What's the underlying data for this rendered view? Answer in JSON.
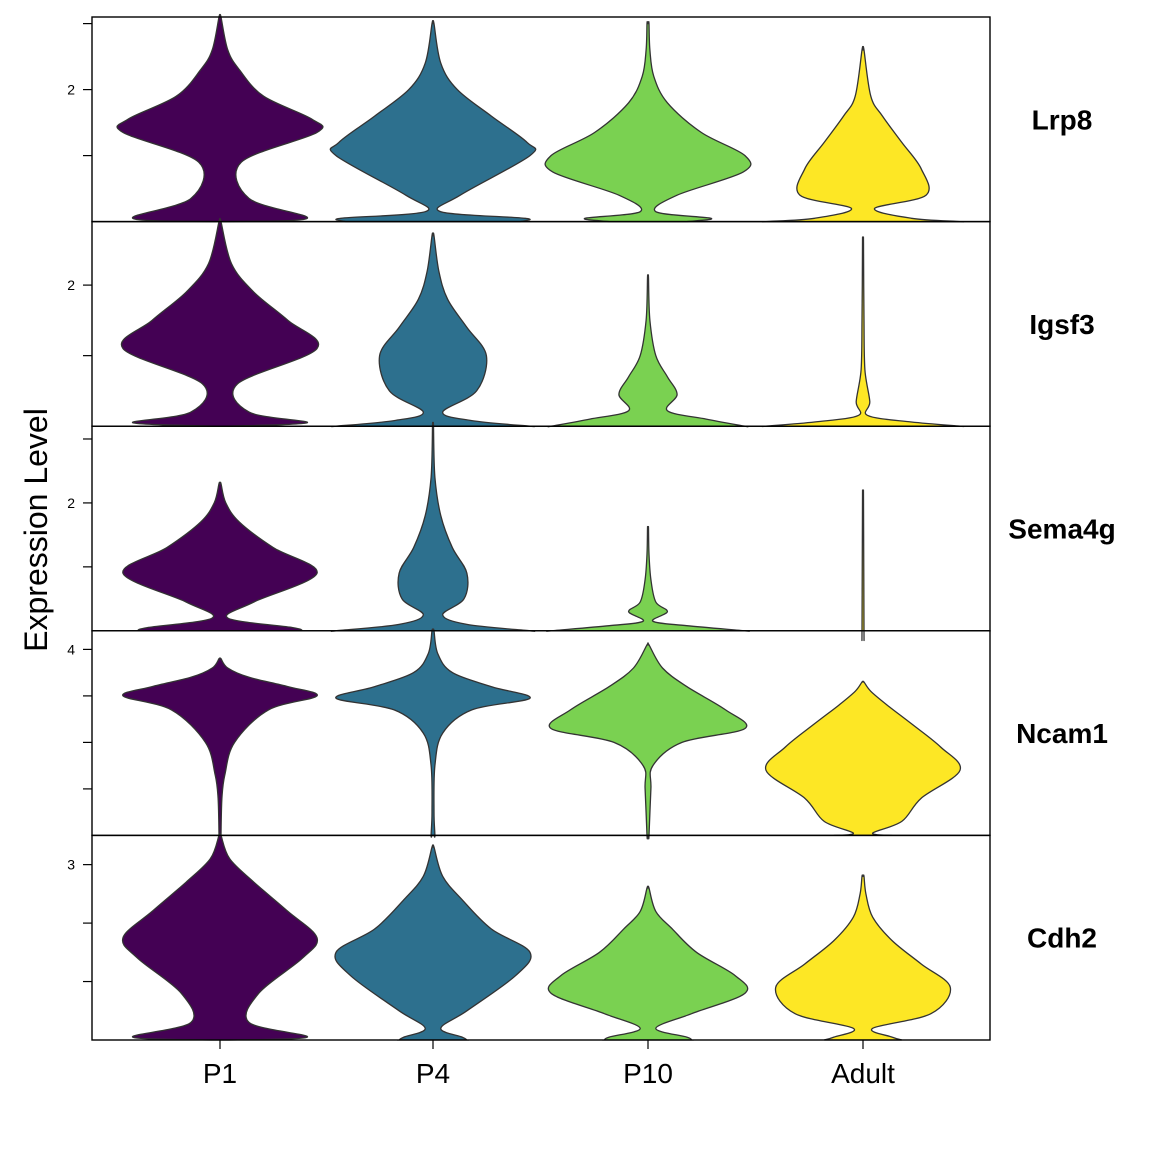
{
  "chart_data": {
    "type": "violin",
    "ylabel": "Expression Level",
    "xlabel": "",
    "categories": [
      "P1",
      "P4",
      "P10",
      "Adult"
    ],
    "colors": [
      "#440154",
      "#2d708e",
      "#7ad151",
      "#fde725"
    ],
    "panels": [
      {
        "gene": "Lrp8",
        "ylim": [
          0,
          3.1
        ],
        "labeled_ticks": [
          2
        ],
        "minor_ticks": [
          1,
          3
        ],
        "violins": [
          {
            "category": "P1",
            "max": 3.1,
            "zero_width": 0.06,
            "shape": [
              [
                0.05,
                0.9
              ],
              [
                0.35,
                0.3
              ],
              [
                0.9,
                0.22
              ],
              [
                1.35,
                1.0
              ],
              [
                1.55,
                0.95
              ],
              [
                1.9,
                0.45
              ],
              [
                2.3,
                0.2
              ],
              [
                2.6,
                0.08
              ],
              [
                3.1,
                0.01
              ]
            ]
          },
          {
            "category": "P4",
            "max": 3.0,
            "zero_width": 0.9,
            "shape": [
              [
                0.05,
                0.95
              ],
              [
                0.15,
                0.08
              ],
              [
                0.4,
                0.28
              ],
              [
                1.0,
                1.0
              ],
              [
                1.2,
                0.97
              ],
              [
                1.6,
                0.6
              ],
              [
                2.0,
                0.25
              ],
              [
                2.4,
                0.08
              ],
              [
                3.0,
                0.01
              ]
            ]
          },
          {
            "category": "P10",
            "max": 3.0,
            "zero_width": 0.4,
            "shape": [
              [
                0.05,
                0.65
              ],
              [
                0.15,
                0.08
              ],
              [
                0.4,
                0.3
              ],
              [
                0.75,
                0.98
              ],
              [
                1.0,
                1.0
              ],
              [
                1.35,
                0.55
              ],
              [
                1.8,
                0.2
              ],
              [
                2.2,
                0.06
              ],
              [
                2.6,
                0.02
              ],
              [
                3.0,
                0.01
              ]
            ]
          },
          {
            "category": "Adult",
            "max": 2.6,
            "zero_width": 1.0,
            "shape": [
              [
                0.0,
                1.0
              ],
              [
                0.05,
                0.5
              ],
              [
                0.2,
                0.12
              ],
              [
                0.4,
                0.65
              ],
              [
                0.8,
                0.6
              ],
              [
                1.2,
                0.4
              ],
              [
                1.6,
                0.2
              ],
              [
                1.9,
                0.08
              ],
              [
                2.6,
                0.01
              ]
            ]
          }
        ]
      },
      {
        "gene": "Igsf3",
        "ylim": [
          0,
          2.9
        ],
        "labeled_ticks": [
          2
        ],
        "minor_ticks": [
          1
        ],
        "violins": [
          {
            "category": "P1",
            "max": 2.9,
            "zero_width": 0.06,
            "shape": [
              [
                0.05,
                0.9
              ],
              [
                0.2,
                0.3
              ],
              [
                0.6,
                0.18
              ],
              [
                1.1,
                1.0
              ],
              [
                1.5,
                0.7
              ],
              [
                1.9,
                0.35
              ],
              [
                2.3,
                0.12
              ],
              [
                2.9,
                0.01
              ]
            ]
          },
          {
            "category": "P4",
            "max": 2.7,
            "zero_width": 1.0,
            "shape": [
              [
                0.0,
                1.0
              ],
              [
                0.08,
                0.4
              ],
              [
                0.2,
                0.1
              ],
              [
                0.5,
                0.45
              ],
              [
                1.0,
                0.55
              ],
              [
                1.4,
                0.35
              ],
              [
                1.8,
                0.15
              ],
              [
                2.2,
                0.06
              ],
              [
                2.7,
                0.01
              ]
            ]
          },
          {
            "category": "P10",
            "max": 2.1,
            "zero_width": 1.0,
            "shape": [
              [
                0.0,
                1.0
              ],
              [
                0.1,
                0.6
              ],
              [
                0.22,
                0.2
              ],
              [
                0.45,
                0.3
              ],
              [
                0.7,
                0.2
              ],
              [
                1.0,
                0.08
              ],
              [
                1.5,
                0.02
              ],
              [
                2.1,
                0.005
              ]
            ]
          },
          {
            "category": "Adult",
            "max": 2.6,
            "zero_width": 1.0,
            "shape": [
              [
                0.0,
                1.0
              ],
              [
                0.06,
                0.5
              ],
              [
                0.15,
                0.05
              ],
              [
                0.35,
                0.07
              ],
              [
                0.8,
                0.02
              ],
              [
                1.5,
                0.01
              ],
              [
                2.6,
                0.005
              ]
            ]
          }
        ]
      },
      {
        "gene": "Sema4g",
        "ylim": [
          0,
          3.2
        ],
        "labeled_ticks": [
          2
        ],
        "minor_ticks": [
          1,
          3
        ],
        "violins": [
          {
            "category": "P1",
            "max": 2.3,
            "zero_width": 0.85,
            "shape": [
              [
                0.05,
                0.75
              ],
              [
                0.2,
                0.08
              ],
              [
                0.45,
                0.35
              ],
              [
                0.9,
                1.0
              ],
              [
                1.3,
                0.55
              ],
              [
                1.7,
                0.2
              ],
              [
                2.0,
                0.06
              ],
              [
                2.3,
                0.01
              ]
            ]
          },
          {
            "category": "P4",
            "max": 3.2,
            "zero_width": 1.0,
            "shape": [
              [
                0.0,
                1.0
              ],
              [
                0.1,
                0.35
              ],
              [
                0.25,
                0.1
              ],
              [
                0.5,
                0.32
              ],
              [
                0.9,
                0.35
              ],
              [
                1.3,
                0.2
              ],
              [
                1.8,
                0.08
              ],
              [
                2.4,
                0.02
              ],
              [
                3.2,
                0.005
              ]
            ]
          },
          {
            "category": "P10",
            "max": 1.6,
            "zero_width": 1.0,
            "shape": [
              [
                0.0,
                1.0
              ],
              [
                0.08,
                0.4
              ],
              [
                0.15,
                0.05
              ],
              [
                0.3,
                0.2
              ],
              [
                0.45,
                0.08
              ],
              [
                0.8,
                0.03
              ],
              [
                1.2,
                0.01
              ],
              [
                1.6,
                0.005
              ]
            ]
          },
          {
            "category": "Adult",
            "max": 2.05,
            "zero_width": 0.01,
            "shape": [
              [
                0.0,
                0.01
              ],
              [
                2.05,
                0.005
              ]
            ]
          }
        ]
      },
      {
        "gene": "Ncam1",
        "ylim": [
          0,
          4.4
        ],
        "labeled_ticks": [
          4
        ],
        "minor_ticks": [
          1,
          2,
          3
        ],
        "violins": [
          {
            "category": "P1",
            "max": 3.8,
            "zero_width": 0.01,
            "shape": [
              [
                0.0,
                0.01
              ],
              [
                0.8,
                0.02
              ],
              [
                1.3,
                0.05
              ],
              [
                2.0,
                0.15
              ],
              [
                2.7,
                0.5
              ],
              [
                3.0,
                1.0
              ],
              [
                3.2,
                0.7
              ],
              [
                3.4,
                0.3
              ],
              [
                3.6,
                0.08
              ],
              [
                3.8,
                0.01
              ]
            ]
          },
          {
            "category": "P4",
            "max": 4.4,
            "zero_width": 0.01,
            "shape": [
              [
                0.0,
                0.02
              ],
              [
                0.5,
                0.01
              ],
              [
                1.5,
                0.02
              ],
              [
                2.2,
                0.1
              ],
              [
                2.7,
                0.4
              ],
              [
                2.95,
                1.0
              ],
              [
                3.2,
                0.6
              ],
              [
                3.5,
                0.2
              ],
              [
                3.9,
                0.05
              ],
              [
                4.4,
                0.01
              ]
            ]
          },
          {
            "category": "P10",
            "max": 4.1,
            "zero_width": 0.005,
            "shape": [
              [
                0.0,
                0.01
              ],
              [
                1.0,
                0.03
              ],
              [
                1.5,
                0.05
              ],
              [
                2.0,
                0.35
              ],
              [
                2.3,
                1.0
              ],
              [
                2.7,
                0.8
              ],
              [
                3.2,
                0.4
              ],
              [
                3.6,
                0.15
              ],
              [
                4.1,
                0.01
              ]
            ]
          },
          {
            "category": "Adult",
            "max": 3.3,
            "zero_width": 0.3,
            "shape": [
              [
                0.05,
                0.1
              ],
              [
                0.3,
                0.4
              ],
              [
                0.8,
                0.6
              ],
              [
                1.4,
                1.0
              ],
              [
                1.9,
                0.8
              ],
              [
                2.4,
                0.5
              ],
              [
                2.8,
                0.25
              ],
              [
                3.1,
                0.08
              ],
              [
                3.3,
                0.01
              ]
            ]
          }
        ]
      },
      {
        "gene": "Cdh2",
        "ylim": [
          0,
          3.5
        ],
        "labeled_ticks": [
          3
        ],
        "minor_ticks": [
          1,
          2
        ],
        "violins": [
          {
            "category": "P1",
            "max": 3.5,
            "zero_width": 0.06,
            "shape": [
              [
                0.05,
                0.9
              ],
              [
                0.3,
                0.3
              ],
              [
                0.8,
                0.4
              ],
              [
                1.4,
                0.85
              ],
              [
                1.75,
                1.0
              ],
              [
                2.2,
                0.7
              ],
              [
                2.7,
                0.35
              ],
              [
                3.1,
                0.1
              ],
              [
                3.5,
                0.01
              ]
            ]
          },
          {
            "category": "P4",
            "max": 3.3,
            "zero_width": 0.35,
            "shape": [
              [
                0.05,
                0.3
              ],
              [
                0.2,
                0.08
              ],
              [
                0.5,
                0.35
              ],
              [
                1.1,
                0.85
              ],
              [
                1.5,
                1.0
              ],
              [
                1.9,
                0.6
              ],
              [
                2.4,
                0.3
              ],
              [
                2.8,
                0.1
              ],
              [
                3.3,
                0.01
              ]
            ]
          },
          {
            "category": "P10",
            "max": 2.6,
            "zero_width": 0.45,
            "shape": [
              [
                0.05,
                0.4
              ],
              [
                0.2,
                0.08
              ],
              [
                0.45,
                0.45
              ],
              [
                0.8,
                1.0
              ],
              [
                1.1,
                0.9
              ],
              [
                1.5,
                0.5
              ],
              [
                1.9,
                0.25
              ],
              [
                2.2,
                0.08
              ],
              [
                2.6,
                0.01
              ]
            ]
          },
          {
            "category": "Adult",
            "max": 2.8,
            "zero_width": 0.4,
            "shape": [
              [
                0.05,
                0.3
              ],
              [
                0.2,
                0.1
              ],
              [
                0.45,
                0.7
              ],
              [
                0.9,
                0.9
              ],
              [
                1.3,
                0.6
              ],
              [
                1.7,
                0.3
              ],
              [
                2.1,
                0.1
              ],
              [
                2.5,
                0.03
              ],
              [
                2.8,
                0.01
              ]
            ]
          }
        ]
      }
    ]
  }
}
